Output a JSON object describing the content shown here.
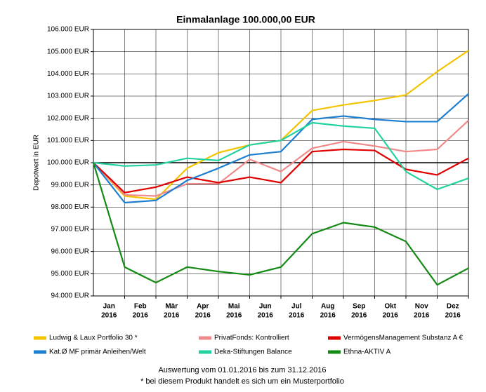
{
  "chart_data": {
    "type": "line",
    "title": "Einmalanlage 100.000,00 EUR",
    "y_axis_label": "Depotwert in EUR",
    "categories": [
      null,
      {
        "month": "Jan",
        "year": "2016"
      },
      {
        "month": "Feb",
        "year": "2016"
      },
      {
        "month": "Mär",
        "year": "2016"
      },
      {
        "month": "Apr",
        "year": "2016"
      },
      {
        "month": "Mai",
        "year": "2016"
      },
      {
        "month": "Jun",
        "year": "2016"
      },
      {
        "month": "Jul",
        "year": "2016"
      },
      {
        "month": "Aug",
        "year": "2016"
      },
      {
        "month": "Sep",
        "year": "2016"
      },
      {
        "month": "Okt",
        "year": "2016"
      },
      {
        "month": "Nov",
        "year": "2016"
      },
      {
        "month": "Dez",
        "year": "2016"
      }
    ],
    "series": [
      {
        "name": "Ludwig & Laux Portfolio 30 *",
        "color": "#f5c400",
        "values": [
          100000,
          98500,
          98350,
          99750,
          100450,
          100800,
          101000,
          102350,
          102600,
          102800,
          103050,
          104100,
          105050
        ]
      },
      {
        "name": "PrivatFonds: Kontrolliert",
        "color": "#f08a8a",
        "values": [
          100000,
          98550,
          98500,
          99050,
          99050,
          100150,
          99600,
          100650,
          100950,
          100750,
          100500,
          100600,
          101900
        ]
      },
      {
        "name": "VermögensManagement Substanz A €",
        "color": "#e00000",
        "values": [
          100000,
          98650,
          98900,
          99350,
          99100,
          99350,
          99100,
          100500,
          100600,
          100550,
          99700,
          99450,
          100200
        ]
      },
      {
        "name": "Kat.Ø MF primär Anleihen/Welt",
        "color": "#1e7fd0",
        "values": [
          100000,
          98200,
          98300,
          99200,
          99750,
          100350,
          100500,
          101950,
          102100,
          101950,
          101850,
          101850,
          103100
        ]
      },
      {
        "name": "Deka-Stiftungen Balance",
        "color": "#22d3a0",
        "values": [
          100000,
          99850,
          99900,
          100200,
          100100,
          100800,
          101000,
          101800,
          101650,
          101550,
          99600,
          98800,
          99300
        ]
      },
      {
        "name": "Ethna-AKTIV A",
        "color": "#138a13",
        "values": [
          100000,
          95300,
          94600,
          95300,
          95100,
          94950,
          95300,
          96800,
          97300,
          97100,
          96450,
          94500,
          95250
        ]
      }
    ],
    "reference_line": 100000,
    "ylim": [
      94000,
      106000
    ],
    "yticks": [
      {
        "value": 94000,
        "label": "94.000 EUR"
      },
      {
        "value": 95000,
        "label": "95.000 EUR"
      },
      {
        "value": 96000,
        "label": "96.000 EUR"
      },
      {
        "value": 97000,
        "label": "97.000 EUR"
      },
      {
        "value": 98000,
        "label": "98.000 EUR"
      },
      {
        "value": 99000,
        "label": "99.000 EUR"
      },
      {
        "value": 100000,
        "label": "100.000 EUR"
      },
      {
        "value": 101000,
        "label": "101.000 EUR"
      },
      {
        "value": 102000,
        "label": "102.000 EUR"
      },
      {
        "value": 103000,
        "label": "103.000 EUR"
      },
      {
        "value": 104000,
        "label": "104.000 EUR"
      },
      {
        "value": 105000,
        "label": "105.000 EUR"
      },
      {
        "value": 106000,
        "label": "106.000 EUR"
      }
    ],
    "grid": true,
    "legend_position": "bottom",
    "footnotes": [
      "Auswertung vom 01.01.2016 bis zum 31.12.2016",
      "* bei diesem Produkt handelt es sich um ein Musterportfolio"
    ]
  }
}
